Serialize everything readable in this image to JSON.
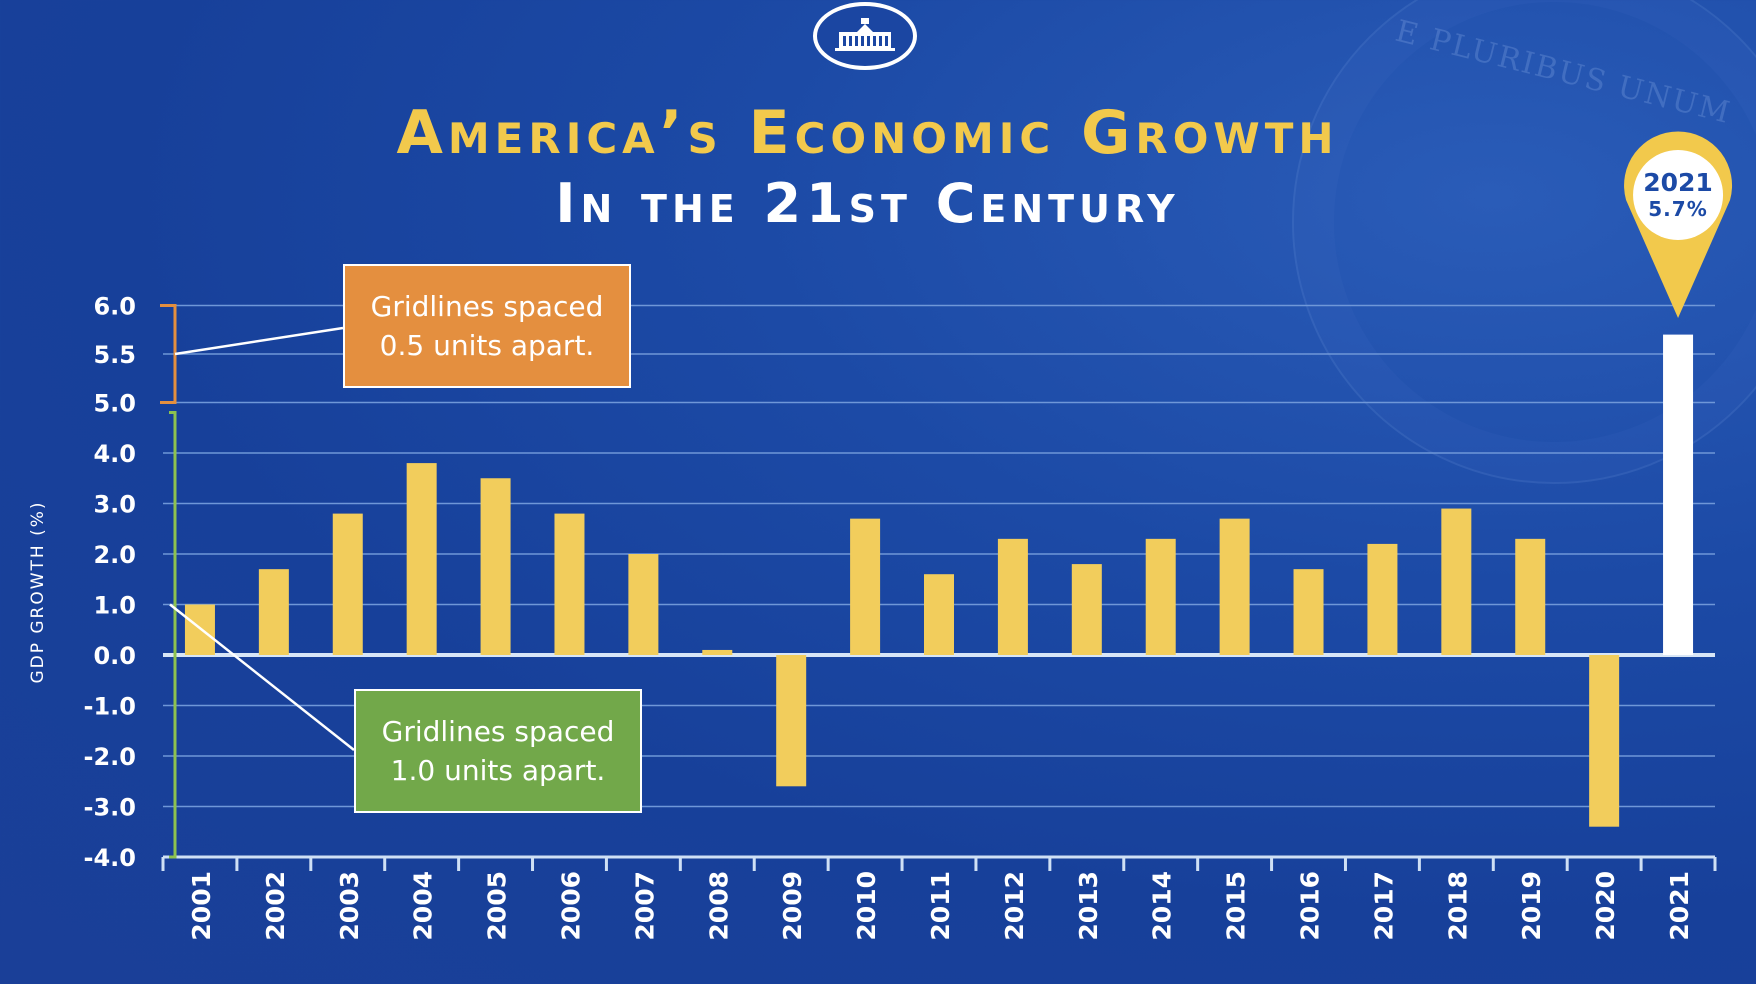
{
  "header": {
    "title": "America’s Economic Growth",
    "subtitle": "In the 21st Century"
  },
  "callouts": {
    "top": {
      "line1": "Gridlines spaced",
      "line2": "0.5 units apart."
    },
    "bottom": {
      "line1": "Gridlines spaced",
      "line2": "1.0 units apart."
    }
  },
  "highlight": {
    "year": "2021",
    "value": "5.7%"
  },
  "watermark": {
    "text": "E PLURIBUS UNUM"
  },
  "colors": {
    "background": "#1c4aa6",
    "bar": "#f2cd5c",
    "highlight_bar": "#ffffff",
    "title": "#f2c94c",
    "orange_bracket": "#e48f3f",
    "green_bracket": "#8dc24f",
    "zero_line": "#d8e6f7",
    "grid": "#6f97d8"
  },
  "chart_data": {
    "type": "bar",
    "title": "America’s Economic Growth In the 21st Century",
    "xlabel": "",
    "ylabel": "GDP GROWTH (%)",
    "categories": [
      "2001",
      "2002",
      "2003",
      "2004",
      "2005",
      "2006",
      "2007",
      "2008",
      "2009",
      "2010",
      "2011",
      "2012",
      "2013",
      "2014",
      "2015",
      "2016",
      "2017",
      "2018",
      "2019",
      "2020",
      "2021"
    ],
    "values": [
      1.0,
      1.7,
      2.8,
      3.8,
      3.5,
      2.8,
      2.0,
      0.1,
      -2.6,
      2.7,
      1.6,
      2.3,
      1.8,
      2.3,
      2.7,
      1.7,
      2.2,
      2.9,
      2.3,
      -3.4,
      5.7
    ],
    "highlight_index": 20,
    "y_ticks": [
      "6.0",
      "5.5",
      "5.0",
      "4.0",
      "3.0",
      "2.0",
      "1.0",
      "0.0",
      "-1.0",
      "-2.0",
      "-3.0",
      "-4.0"
    ],
    "ylim": [
      -4.0,
      6.0
    ],
    "grid": true
  }
}
